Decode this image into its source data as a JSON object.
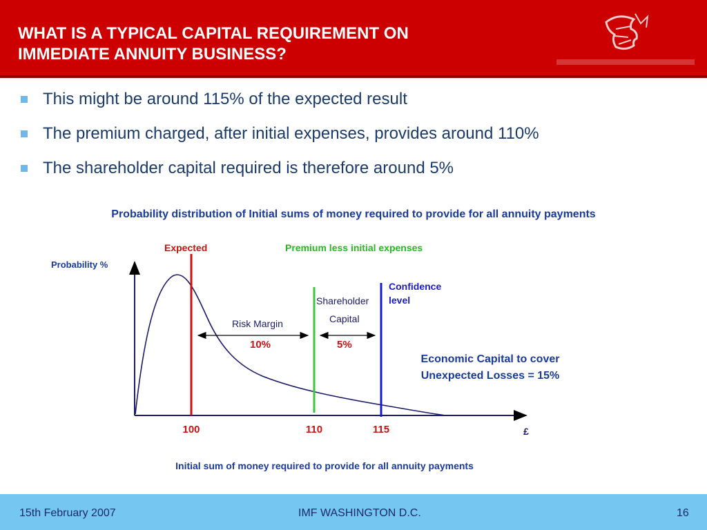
{
  "header": {
    "title_line1": "WHAT IS A TYPICAL CAPITAL REQUIREMENT ON",
    "title_line2": "IMMEDIATE ANNUITY BUSINESS?",
    "logo_icon": "prudential-head-logo"
  },
  "bullets": [
    "This might be around 115% of the expected result",
    "The premium charged, after initial expenses, provides around 110%",
    "The shareholder capital required is therefore around 5%"
  ],
  "chart_data": {
    "type": "line",
    "title": "Probability distribution of Initial sums of money required to provide for all annuity payments",
    "ylabel": "Probability %",
    "xlabel": "Initial sum of money required to provide for all annuity payments",
    "x_unit": "£",
    "x_ticks": [
      "100",
      "110",
      "115"
    ],
    "markers": [
      {
        "label": "Expected",
        "x": 100,
        "color": "#cc1111"
      },
      {
        "label": "Premium less initial expenses",
        "x": 110,
        "color": "#33cc33"
      },
      {
        "label": "Confidence level",
        "x": 115,
        "color": "#1a1acc"
      }
    ],
    "annotations": {
      "risk_margin_label": "Risk Margin",
      "risk_margin_value": "10%",
      "shareholder_label_1": "Shareholder",
      "shareholder_label_2": "Capital",
      "shareholder_value": "5%",
      "economic_capital_1": "Economic Capital to cover",
      "economic_capital_2": "Unexpected Losses = 15%",
      "confidence_1": "Confidence",
      "confidence_2": "level"
    }
  },
  "footer": {
    "date": "15th February 2007",
    "event": "IMF WASHINGTON D.C.",
    "page": "16"
  }
}
